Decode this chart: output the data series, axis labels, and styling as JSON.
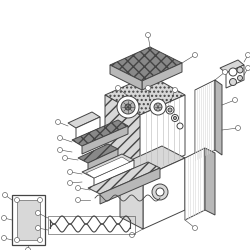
{
  "bg_color": "#ffffff",
  "line_color": "#444444",
  "fill_light": "#d8d8d8",
  "fill_dark": "#888888",
  "fill_mid": "#b8b8b8",
  "fill_white": "#ffffff",
  "figsize": [
    2.5,
    2.5
  ],
  "dpi": 100,
  "lw_main": 0.7,
  "lw_thin": 0.4
}
